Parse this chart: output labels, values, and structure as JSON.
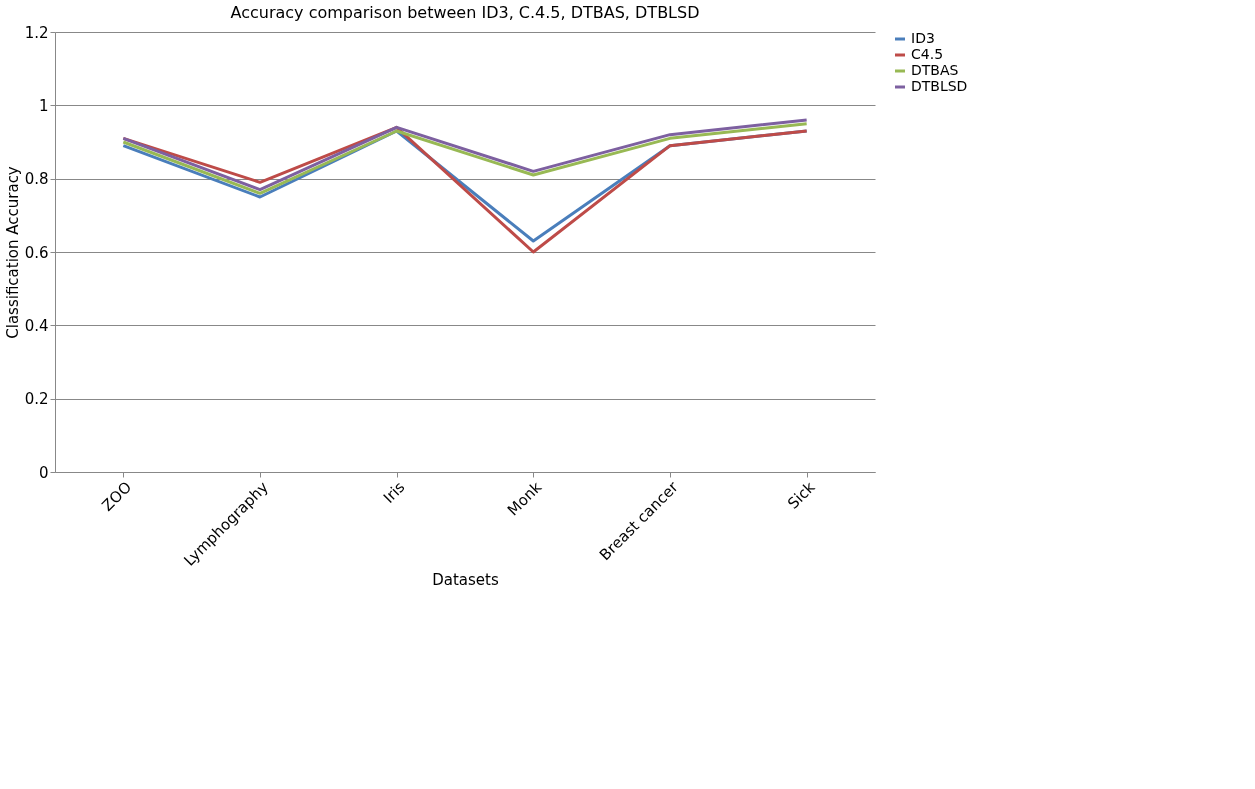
{
  "chart_data": {
    "type": "line",
    "title": "Accuracy comparison between ID3, C.4.5, DTBAS, DTBLSD",
    "xlabel": "Datasets",
    "ylabel": "Classification Accuracy",
    "categories": [
      "ZOO",
      "Lymphography",
      "Iris",
      "Monk",
      "Breast cancer",
      "Sick"
    ],
    "series": [
      {
        "name": "ID3",
        "color": "#4a7ebb",
        "values": [
          0.89,
          0.75,
          0.93,
          0.63,
          0.89,
          0.93
        ]
      },
      {
        "name": "C4.5",
        "color": "#be4b48",
        "values": [
          0.91,
          0.79,
          0.94,
          0.6,
          0.89,
          0.93
        ]
      },
      {
        "name": "DTBAS",
        "color": "#98b954",
        "values": [
          0.9,
          0.76,
          0.93,
          0.81,
          0.91,
          0.95
        ]
      },
      {
        "name": "DTBLSD",
        "color": "#7d60a0",
        "values": [
          0.91,
          0.77,
          0.94,
          0.82,
          0.92,
          0.96
        ]
      }
    ],
    "ylim": [
      0,
      1.2
    ],
    "yticks": [
      0,
      0.2,
      0.4,
      0.6,
      0.8,
      1,
      1.2
    ],
    "grid": "y",
    "legend": "right",
    "marker": "none",
    "line_style": "solid"
  }
}
